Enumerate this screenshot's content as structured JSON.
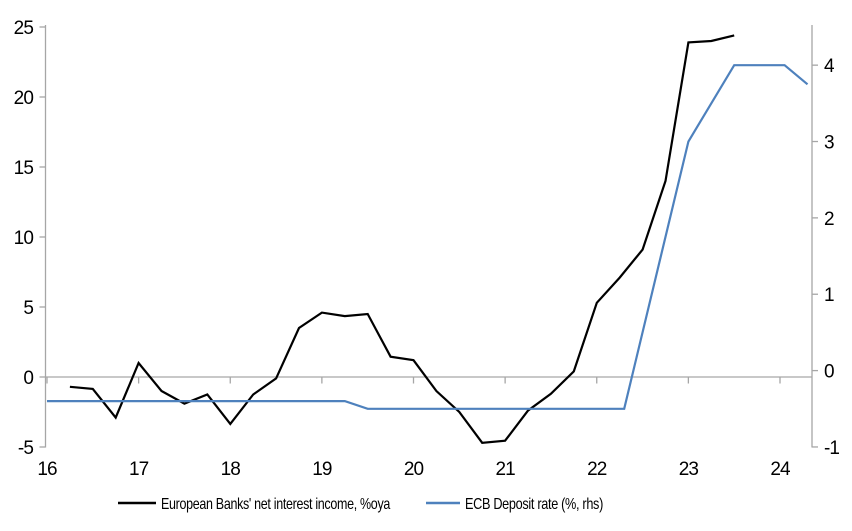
{
  "page": {
    "background": "#FFFFFF"
  },
  "chart_data": {
    "type": "line",
    "title": "",
    "x_axis": {
      "ticks": [
        16,
        17,
        18,
        19,
        20,
        21,
        22,
        23,
        24
      ],
      "range": [
        16,
        24.35
      ],
      "grid": false
    },
    "left_axis": {
      "ticks": [
        -5,
        0,
        5,
        10,
        15,
        20,
        25
      ],
      "range": [
        -5,
        25
      ]
    },
    "right_axis": {
      "ticks": [
        -1,
        0,
        1,
        2,
        3,
        4
      ],
      "range": [
        -1,
        4.5
      ]
    },
    "style": {
      "axis_color": "#A6A6A6",
      "text_color": "#000000",
      "nii_color": "#000000",
      "rate_color": "#4E81BD",
      "background": "#FFFFFF"
    },
    "series": [
      {
        "name": "European Banks' net interest income, %oya",
        "axis": "left",
        "color": "#000000",
        "x": [
          16.25,
          16.5,
          16.75,
          17.0,
          17.25,
          17.5,
          17.75,
          18.0,
          18.25,
          18.5,
          18.75,
          19.0,
          19.25,
          19.5,
          19.75,
          20.0,
          20.25,
          20.5,
          20.75,
          21.0,
          21.25,
          21.5,
          21.75,
          22.0,
          22.25,
          22.5,
          22.75,
          23.0,
          23.25,
          23.5
        ],
        "values": [
          -0.7,
          -0.85,
          -2.9,
          1.0,
          -1.0,
          -1.9,
          -1.25,
          -3.35,
          -1.25,
          -0.1,
          3.5,
          4.6,
          4.35,
          4.5,
          1.45,
          1.2,
          -1.0,
          -2.5,
          -4.7,
          -4.55,
          -2.4,
          -1.2,
          0.4,
          5.3,
          7.1,
          9.1,
          14.0,
          23.9,
          24.0,
          24.4
        ]
      },
      {
        "name": "ECB Deposit rate (%, rhs)",
        "axis": "right",
        "color": "#4E81BD",
        "x": [
          16.0,
          19.25,
          19.5,
          22.3,
          23.0,
          23.5,
          24.05,
          24.3
        ],
        "values": [
          -0.4,
          -0.4,
          -0.5,
          -0.5,
          3.0,
          4.0,
          4.0,
          3.75
        ]
      }
    ],
    "legend": {
      "position": "bottom",
      "items": [
        "European Banks' net interest income, %oya",
        "ECB Deposit rate (%, rhs)"
      ]
    }
  }
}
